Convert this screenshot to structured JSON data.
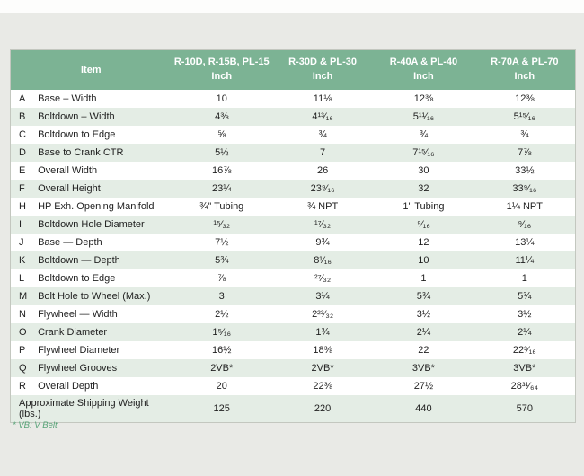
{
  "table": {
    "header": {
      "item_label": "Item",
      "columns": [
        {
          "models": "R-10D, R-15B, PL-15",
          "unit": "Inch"
        },
        {
          "models": "R-30D & PL-30",
          "unit": "Inch"
        },
        {
          "models": "R-40A & PL-40",
          "unit": "Inch"
        },
        {
          "models": "R-70A & PL-70",
          "unit": "Inch"
        }
      ]
    },
    "rows": [
      {
        "letter": "A",
        "item": "Base – Width",
        "values": [
          "10",
          "11⅛",
          "12⅜",
          "12⅜"
        ]
      },
      {
        "letter": "B",
        "item": "Boltdown – Width",
        "values": [
          "4⅜",
          "4¹³⁄₁₆",
          "5¹¹⁄₁₆",
          "5¹⁵⁄₁₆"
        ]
      },
      {
        "letter": "C",
        "item": "Boltdown to Edge",
        "values": [
          "⅝",
          "¾",
          "¾",
          "¾"
        ]
      },
      {
        "letter": "D",
        "item": "Base to Crank CTR",
        "values": [
          "5½",
          "7",
          "7¹⁵⁄₁₆",
          "7⅞"
        ]
      },
      {
        "letter": "E",
        "item": "Overall Width",
        "values": [
          "16⅞",
          "26",
          "30",
          "33½"
        ]
      },
      {
        "letter": "F",
        "item": "Overall Height",
        "values": [
          "23¼",
          "23⁹⁄₁₆",
          "32",
          "33⁹⁄₁₆"
        ]
      },
      {
        "letter": "H",
        "item": "HP Exh. Opening Manifold",
        "values": [
          "¾\" Tubing",
          "¾ NPT",
          "1\" Tubing",
          "1¼ NPT"
        ]
      },
      {
        "letter": "I",
        "item": "Boltdown Hole Diameter",
        "values": [
          "¹⁵⁄₃₂",
          "¹⁷⁄₃₂",
          "⁹⁄₁₆",
          "⁹⁄₁₆"
        ]
      },
      {
        "letter": "J",
        "item": "Base — Depth",
        "values": [
          "7½",
          "9¾",
          "12",
          "13¼"
        ]
      },
      {
        "letter": "K",
        "item": "Boltdown — Depth",
        "values": [
          "5¾",
          "8¹⁄₁₆",
          "10",
          "11¼"
        ]
      },
      {
        "letter": "L",
        "item": "Boltdown to Edge",
        "values": [
          "⅞",
          "²⁷⁄₃₂",
          "1",
          "1"
        ]
      },
      {
        "letter": "M",
        "item": "Bolt Hole to Wheel (Max.)",
        "values": [
          "3",
          "3¼",
          "5¾",
          "5¾"
        ]
      },
      {
        "letter": "N",
        "item": "Flywheel — Width",
        "values": [
          "2½",
          "2²³⁄₃₂",
          "3½",
          "3½"
        ]
      },
      {
        "letter": "O",
        "item": "Crank Diameter",
        "values": [
          "1⁵⁄₁₆",
          "1¾",
          "2¼",
          "2¼"
        ]
      },
      {
        "letter": "P",
        "item": "Flywheel Diameter",
        "values": [
          "16½",
          "18⅜",
          "22",
          "22³⁄₁₆"
        ]
      },
      {
        "letter": "Q",
        "item": "Flywheel Grooves",
        "values": [
          "2VB*",
          "2VB*",
          "3VB*",
          "3VB*"
        ]
      },
      {
        "letter": "R",
        "item": "Overall Depth",
        "values": [
          "20",
          "22⅜",
          "27½",
          "28³¹⁄₆₄"
        ]
      }
    ],
    "summary_row": {
      "label": "Approximate Shipping Weight (lbs.)",
      "values": [
        "125",
        "220",
        "440",
        "570"
      ]
    }
  },
  "footnote": "* VB: V Belt",
  "colors": {
    "header_bg": "#7cb394",
    "row_alt_bg": "#e4ede5",
    "page_bg": "#e9eae6",
    "footnote_green": "#55a376"
  }
}
